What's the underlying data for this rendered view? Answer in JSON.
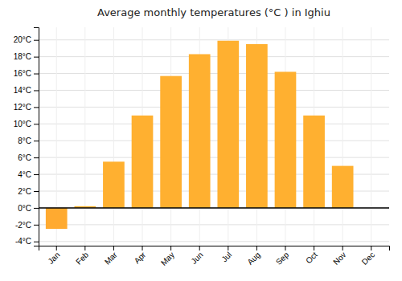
{
  "chart_data": {
    "type": "bar",
    "title": "Average monthly temperatures (°C ) in Ighiu",
    "categories": [
      "Jan",
      "Feb",
      "Mar",
      "Apr",
      "May",
      "Jun",
      "Jul",
      "Aug",
      "Sep",
      "Oct",
      "Nov",
      "Dec"
    ],
    "values": [
      -2.5,
      0.2,
      5.5,
      11.0,
      15.7,
      18.3,
      19.9,
      19.5,
      16.2,
      11.0,
      5.0,
      0.0
    ],
    "colors": [
      "#FFAA30",
      "#FFB030",
      "#FFB030",
      "#FFB030",
      "#FFB030",
      "#FFB030",
      "#FFB030",
      "#FFB030",
      "#FFB030",
      "#FFB030",
      "#FFB030",
      "#FFB030"
    ],
    "ylim": [
      -4.5,
      21.5
    ],
    "yticks": [
      {
        "value": -4,
        "label": "-4°C"
      },
      {
        "value": -2,
        "label": "-2°C"
      },
      {
        "value": 0,
        "label": "0°C"
      },
      {
        "value": 2,
        "label": "2°C"
      },
      {
        "value": 4,
        "label": "4°C"
      },
      {
        "value": 6,
        "label": "6°C"
      },
      {
        "value": 8,
        "label": "8°C"
      },
      {
        "value": 10,
        "label": "10°C"
      },
      {
        "value": 12,
        "label": "12°C"
      },
      {
        "value": 14,
        "label": "14°C"
      },
      {
        "value": 16,
        "label": "16°C"
      },
      {
        "value": 18,
        "label": "18°C"
      },
      {
        "value": 20,
        "label": "20°C"
      }
    ],
    "grid": true
  }
}
